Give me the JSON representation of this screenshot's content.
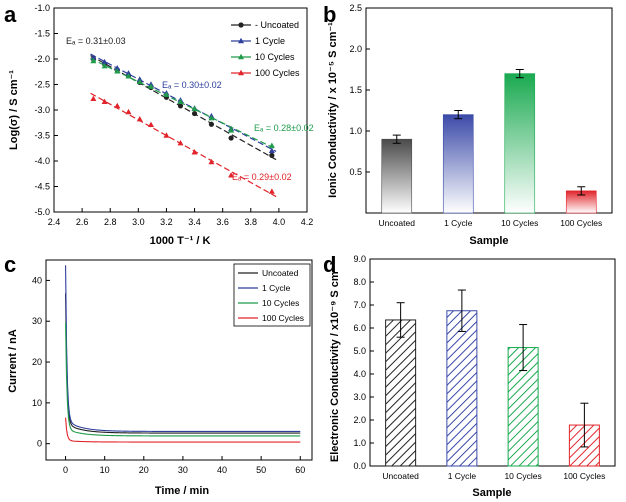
{
  "panel_labels": [
    "a",
    "b",
    "c",
    "d"
  ],
  "colors": {
    "black": "#222222",
    "blue": "#2e3f9c",
    "green": "#1f9b4a",
    "red": "#e0242a"
  },
  "chart_data": [
    {
      "panel": "a",
      "type": "scatter",
      "xlabel": "1000 T⁻¹ / K",
      "ylabel": "Log(σ) / S cm⁻¹",
      "xlim": [
        2.4,
        4.2
      ],
      "ylim": [
        -5.0,
        -1.0
      ],
      "xticks": [
        "2.4",
        "2.6",
        "2.8",
        "3.0",
        "3.2",
        "3.4",
        "3.6",
        "3.8",
        "4.0",
        "4.2"
      ],
      "yticks": [
        "-1.0",
        "-1.5",
        "-2.0",
        "-2.5",
        "-3.0",
        "-3.5",
        "-4.0",
        "-4.5",
        "-5.0"
      ],
      "legend": [
        "Uncoated",
        "1 Cycle",
        "10 Cycles",
        "100 Cycles"
      ],
      "x": [
        2.68,
        2.76,
        2.85,
        2.93,
        3.01,
        3.09,
        3.2,
        3.3,
        3.4,
        3.52,
        3.66,
        3.95
      ],
      "series": [
        {
          "name": "Uncoated",
          "marker": "circle",
          "color": "#222222",
          "values": [
            -2.0,
            -2.1,
            -2.22,
            -2.33,
            -2.46,
            -2.56,
            -2.75,
            -2.92,
            -3.07,
            -3.28,
            -3.55,
            -3.89
          ]
        },
        {
          "name": "1 Cycle",
          "marker": "triangle",
          "color": "#2e3f9c",
          "values": [
            -1.98,
            -2.06,
            -2.18,
            -2.28,
            -2.4,
            -2.5,
            -2.67,
            -2.81,
            -2.97,
            -3.12,
            -3.37,
            -3.8
          ]
        },
        {
          "name": "10 Cycles",
          "marker": "triangle",
          "color": "#1f9b4a",
          "values": [
            -2.04,
            -2.14,
            -2.24,
            -2.34,
            -2.45,
            -2.54,
            -2.7,
            -2.84,
            -2.98,
            -3.16,
            -3.4,
            -3.7
          ]
        },
        {
          "name": "100 Cycles",
          "marker": "triangle",
          "color": "#e0242a",
          "values": [
            -2.78,
            -2.84,
            -2.92,
            -3.04,
            -3.18,
            -3.29,
            -3.5,
            -3.65,
            -3.83,
            -4.02,
            -4.28,
            -4.6
          ]
        }
      ],
      "annotations": [
        {
          "text": "Eₐ = 0.31±0.03",
          "color": "#222222"
        },
        {
          "text": "Eₐ = 0.30±0.02",
          "color": "#2e3f9c"
        },
        {
          "text": "Eₐ = 0.28±0.02",
          "color": "#1f9b4a"
        },
        {
          "text": "Eₐ = 0.29±0.02",
          "color": "#e0242a"
        }
      ]
    },
    {
      "panel": "b",
      "type": "bar",
      "xlabel": "Sample",
      "ylabel": "Ionic Conductivity / x 10⁻⁵ S cm⁻¹",
      "ylim": [
        0.0,
        2.5
      ],
      "yticks": [
        "0.5",
        "1.0",
        "1.5",
        "2.0",
        "2.5"
      ],
      "categories": [
        "Uncoated",
        "1 Cycle",
        "10 Cycles",
        "100 Cycles"
      ],
      "values": [
        0.9,
        1.2,
        1.7,
        0.27
      ],
      "errors": [
        0.05,
        0.05,
        0.05,
        0.05
      ],
      "colors": [
        "#4a4a4a",
        "#3b4aa8",
        "#19a94f",
        "#e0242a"
      ]
    },
    {
      "panel": "c",
      "type": "line",
      "xlabel": "Time / min",
      "ylabel": "Current / nA",
      "xlim": [
        -5,
        63
      ],
      "ylim": [
        -4,
        45
      ],
      "xticks": [
        "0",
        "10",
        "20",
        "30",
        "40",
        "50",
        "60"
      ],
      "yticks": [
        "0",
        "10",
        "20",
        "30",
        "40"
      ],
      "legend": [
        "Uncoated",
        "1 Cycle",
        "10 Cycles",
        "100 Cycles"
      ],
      "series": [
        {
          "name": "Uncoated",
          "color": "#222222",
          "peak": 34.5,
          "steady": 2.6
        },
        {
          "name": "1 Cycle",
          "color": "#2e3f9c",
          "peak": 41.0,
          "steady": 3.0
        },
        {
          "name": "10 Cycles",
          "color": "#1f9b4a",
          "peak": 28.0,
          "steady": 1.9
        },
        {
          "name": "100 Cycles",
          "color": "#e0242a",
          "peak": 6.0,
          "steady": 0.4
        }
      ]
    },
    {
      "panel": "d",
      "type": "bar",
      "xlabel": "Sample",
      "ylabel": "Electronic Conductivity / x10⁻⁹ S cm⁻¹",
      "ylim": [
        0.0,
        9.0
      ],
      "yticks": [
        "0.0",
        "1.0",
        "2.0",
        "3.0",
        "4.0",
        "5.0",
        "6.0",
        "7.0",
        "8.0",
        "9.0"
      ],
      "categories": [
        "Uncoated",
        "1 Cycle",
        "10 Cycles",
        "100 Cycles"
      ],
      "values": [
        6.35,
        6.75,
        5.15,
        1.78
      ],
      "errors": [
        0.75,
        0.9,
        1.0,
        0.95
      ],
      "colors": [
        "#222222",
        "#3b4aa8",
        "#19a94f",
        "#e0242a"
      ]
    }
  ]
}
